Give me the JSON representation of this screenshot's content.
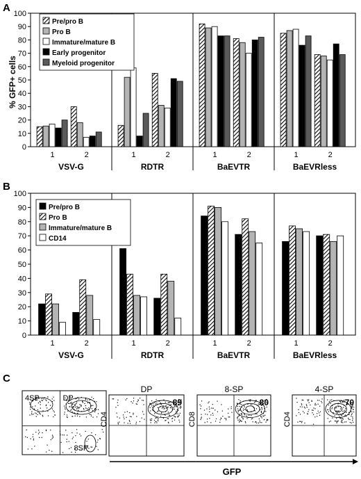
{
  "chart_data": [
    {
      "panel_label": "A",
      "type": "bar",
      "ylabel": "% GFP+ cells",
      "ylim": [
        0,
        100
      ],
      "yticks": [
        0,
        10,
        20,
        30,
        40,
        50,
        60,
        70,
        80,
        90,
        100
      ],
      "groups": [
        "VSV-G",
        "RDTR",
        "BaEVTR",
        "BaEVRless"
      ],
      "subcategories": [
        "1",
        "2"
      ],
      "legend_position": "top-left",
      "series": [
        {
          "name": "Pre/pro B",
          "pattern": "hatch",
          "values": [
            15,
            30,
            16,
            55,
            92,
            81,
            85,
            69
          ]
        },
        {
          "name": "Pro B",
          "pattern": "gray",
          "values": [
            15.5,
            18,
            52,
            31,
            89,
            78,
            87,
            68
          ]
        },
        {
          "name": "Immature/mature B",
          "pattern": "white",
          "values": [
            17,
            7,
            59,
            29,
            90,
            70,
            88,
            65
          ]
        },
        {
          "name": "Early progenitor",
          "pattern": "black",
          "values": [
            14,
            8,
            8,
            51,
            83,
            80,
            76,
            77
          ]
        },
        {
          "name": "Myeloid progenitor",
          "pattern": "darkgray",
          "values": [
            20,
            11,
            25,
            49,
            83,
            82,
            83,
            69
          ]
        }
      ]
    },
    {
      "panel_label": "B",
      "type": "bar",
      "ylabel": "",
      "ylim": [
        0,
        100
      ],
      "yticks": [
        0,
        10,
        20,
        30,
        40,
        50,
        60,
        70,
        80,
        90,
        100
      ],
      "groups": [
        "VSV-G",
        "RDTR",
        "BaEVTR",
        "BaEVRless"
      ],
      "subcategories": [
        "1",
        "2"
      ],
      "legend_position": "top-left",
      "series": [
        {
          "name": "Pre/pro B",
          "pattern": "black",
          "values": [
            22,
            16,
            61,
            26,
            84,
            71,
            66,
            70
          ]
        },
        {
          "name": "Pro B",
          "pattern": "hatch",
          "values": [
            29,
            39,
            43,
            43,
            91,
            82,
            77,
            71
          ]
        },
        {
          "name": "Immature/mature B",
          "pattern": "gray",
          "values": [
            22,
            28,
            28,
            38,
            90,
            73,
            75,
            66
          ]
        },
        {
          "name": "CD14",
          "pattern": "white",
          "values": [
            9,
            11,
            27,
            12,
            80,
            65,
            73,
            70
          ]
        }
      ]
    },
    {
      "panel_label": "C",
      "type": "scatter",
      "xlabel": "GFP",
      "plots": [
        {
          "title": "",
          "ylabel": "",
          "quadrants": [
            "4SP",
            "DP",
            "",
            "8SP"
          ],
          "value": ""
        },
        {
          "title": "DP",
          "ylabel": "CD4",
          "quadrants": [],
          "value": "89"
        },
        {
          "title": "8-SP",
          "ylabel": "CD8",
          "quadrants": [],
          "value": "80"
        },
        {
          "title": "4-SP",
          "ylabel": "CD4",
          "quadrants": [],
          "value": "70"
        }
      ]
    }
  ],
  "colors": {
    "gray": "#b4b4b4",
    "darkgray": "#5a5a5a",
    "black": "#000000",
    "white": "#ffffff",
    "axis": "#000000"
  }
}
